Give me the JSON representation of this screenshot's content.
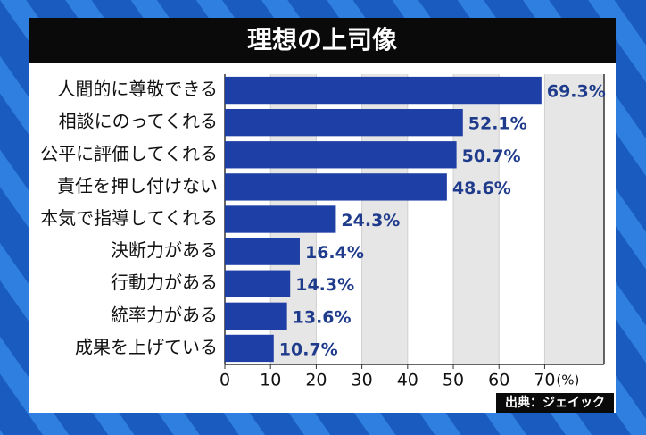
{
  "chart_data": {
    "type": "bar",
    "orientation": "horizontal",
    "title": "理想の上司像",
    "categories": [
      "人間的に尊敬できる",
      "相談にのってくれる",
      "公平に評価してくれる",
      "責任を押し付けない",
      "本気で指導してくれる",
      "決断力がある",
      "行動力がある",
      "統率力がある",
      "成果を上げている"
    ],
    "values": [
      69.3,
      52.1,
      50.7,
      48.6,
      24.3,
      16.4,
      14.3,
      13.6,
      10.7
    ],
    "value_labels": [
      "69.3%",
      "52.1%",
      "50.7%",
      "48.6%",
      "24.3%",
      "16.4%",
      "14.3%",
      "13.6%",
      "10.7%"
    ],
    "color": "#1e3fa6",
    "label_color": "#1f3b8c",
    "xlim": [
      0,
      83
    ],
    "xticks": [
      0,
      10,
      20,
      30,
      40,
      50,
      60,
      70
    ],
    "x_unit": "(%)",
    "grid": true,
    "source": "出典：ジェイック"
  }
}
